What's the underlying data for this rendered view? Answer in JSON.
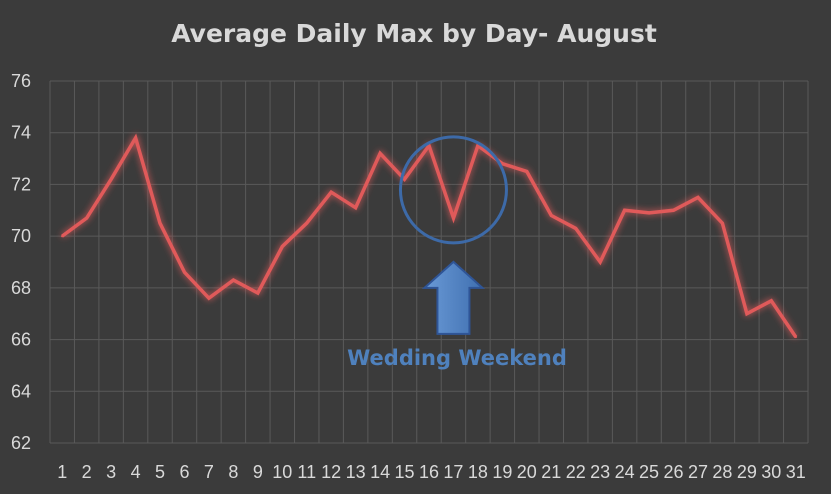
{
  "chart_data": {
    "type": "line",
    "title": "Average Daily Max by Day- August",
    "xlabel": "",
    "ylabel": "",
    "x": [
      1,
      2,
      3,
      4,
      5,
      6,
      7,
      8,
      9,
      10,
      11,
      12,
      13,
      14,
      15,
      16,
      17,
      18,
      19,
      20,
      21,
      22,
      23,
      24,
      25,
      26,
      27,
      28,
      29,
      30,
      31
    ],
    "series": [
      {
        "values": [
          70.0,
          70.7,
          72.2,
          73.8,
          70.5,
          68.6,
          67.6,
          68.3,
          67.8,
          69.6,
          70.5,
          71.7,
          71.1,
          73.2,
          72.2,
          73.5,
          70.7,
          73.5,
          72.8,
          72.5,
          70.8,
          70.3,
          69.0,
          71.0,
          70.9,
          71.0,
          71.5,
          70.5,
          67.0,
          67.5,
          66.1
        ]
      }
    ],
    "ylim": [
      62,
      76
    ],
    "yticks": [
      62,
      64,
      66,
      68,
      70,
      72,
      74,
      76
    ],
    "grid": true,
    "line_color": "#e05a5a",
    "highlight_color": "#4f81bd",
    "annotation": {
      "text": "Wedding Weekend",
      "target_days": [
        16,
        17,
        18
      ]
    }
  }
}
